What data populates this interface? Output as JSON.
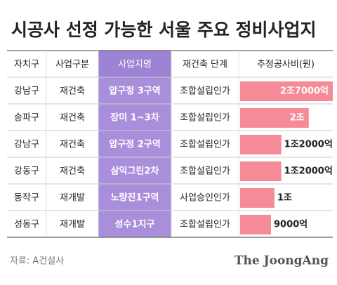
{
  "title": "시공사 선정 가능한 서울 주요 정비사업지",
  "table": {
    "headers": [
      "자치구",
      "사업구분",
      "사업지명",
      "재건축 단계",
      "추정공사비(원)"
    ],
    "rows": [
      [
        "강남구",
        "재건축",
        "압구정 3구역",
        "조합설립인가"
      ],
      [
        "송파구",
        "재건축",
        "장미 1~3차",
        "조합설립인가"
      ],
      [
        "강남구",
        "재건축",
        "압구정 2구역",
        "조합설립인가"
      ],
      [
        "강동구",
        "재건축",
        "삼익그린2차",
        "조합설립인가"
      ],
      [
        "동작구",
        "재개발",
        "노량진1구역",
        "사업승인인가"
      ],
      [
        "성동구",
        "재개발",
        "성수1지구",
        "조합설립인가"
      ]
    ]
  },
  "chart_data": {
    "type": "bar",
    "values": [
      27000,
      20000,
      12000,
      12000,
      10000,
      9000
    ],
    "value_labels": [
      "2조7000억",
      "2조",
      "1조2000억",
      "1조2000억",
      "1조",
      "9000억"
    ],
    "xlim": [
      0,
      27000
    ],
    "color": "#f48b97"
  },
  "source": "자료: A건설사",
  "logo": "The JoongAng"
}
